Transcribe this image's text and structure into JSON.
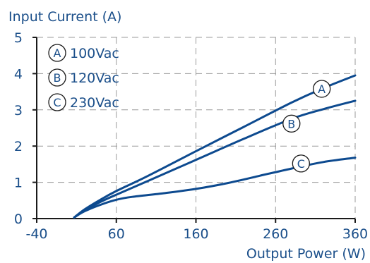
{
  "chart_data": {
    "type": "line",
    "title": "",
    "ylabel": "Input Current (A)",
    "xlabel": "Output Power (W)",
    "xlim": [
      -40,
      360
    ],
    "ylim": [
      0,
      5
    ],
    "x_ticks": [
      -40,
      60,
      160,
      260,
      360
    ],
    "y_ticks": [
      0,
      1,
      2,
      3,
      4,
      5
    ],
    "x_tick_labels": [
      "-40",
      "60",
      "160",
      "260",
      "360"
    ],
    "y_tick_labels": [
      "0",
      "1",
      "2",
      "3",
      "4",
      "5"
    ],
    "grid": true,
    "legend_position": "top-left",
    "series": [
      {
        "name": "100Vac",
        "marker": "A",
        "x": [
          7,
          20,
          40,
          60,
          100,
          160,
          220,
          280,
          320,
          360
        ],
        "y": [
          0.03,
          0.25,
          0.52,
          0.76,
          1.18,
          1.86,
          2.53,
          3.2,
          3.6,
          3.95
        ]
      },
      {
        "name": "120Vac",
        "marker": "B",
        "x": [
          7,
          20,
          40,
          60,
          100,
          160,
          220,
          280,
          320,
          360
        ],
        "y": [
          0.03,
          0.22,
          0.46,
          0.66,
          1.04,
          1.62,
          2.2,
          2.75,
          3.02,
          3.25
        ]
      },
      {
        "name": "230Vac",
        "marker": "C",
        "x": [
          7,
          20,
          40,
          60,
          80,
          120,
          160,
          200,
          240,
          280,
          320,
          360
        ],
        "y": [
          0.03,
          0.2,
          0.38,
          0.52,
          0.6,
          0.7,
          0.82,
          0.98,
          1.18,
          1.38,
          1.56,
          1.68
        ]
      }
    ],
    "markers_on_lines": [
      {
        "label": "A",
        "x": 318,
        "y": 3.58
      },
      {
        "label": "B",
        "x": 280,
        "y": 2.62
      },
      {
        "label": "C",
        "x": 292,
        "y": 1.52
      }
    ],
    "colors": {
      "line": "#0d4a8f",
      "text": "#1b4f8a",
      "axis": "#1a1a1a",
      "grid": "#9a9a9a"
    }
  }
}
